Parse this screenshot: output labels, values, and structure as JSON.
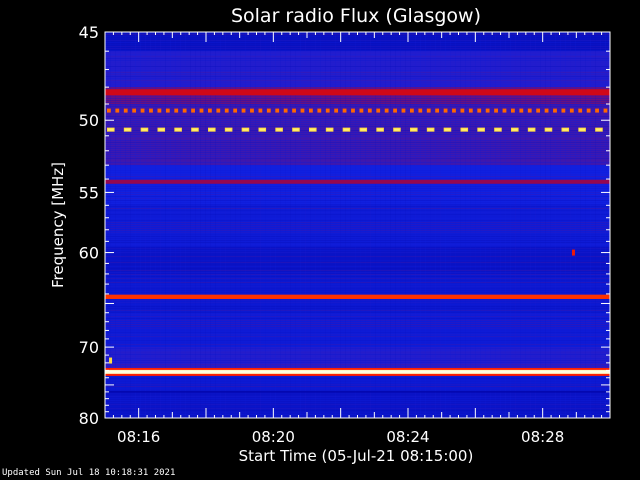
{
  "chart_data": {
    "type": "heatmap",
    "title": "Solar radio Flux (Glasgow)",
    "xlabel": "Start Time (05-Jul-21 08:15:00)",
    "ylabel": "Frequency [MHz]",
    "x_unit": "minutes after 08:15:00",
    "x_range_minutes": [
      0,
      15
    ],
    "x_ticks": [
      {
        "minute": 1,
        "label": "08:16"
      },
      {
        "minute": 5,
        "label": "08:20"
      },
      {
        "minute": 9,
        "label": "08:24"
      },
      {
        "minute": 13,
        "label": "08:28"
      }
    ],
    "y_range_mhz": [
      45,
      80
    ],
    "y_ticks": [
      45,
      50,
      55,
      60,
      70,
      80
    ],
    "y_tick_labels": [
      "45",
      "50",
      "55",
      "60",
      "70",
      "80"
    ],
    "colormap": [
      "#0000a0",
      "#1020e0",
      "#c00020",
      "#ff2000",
      "#ffd000",
      "#ffffff"
    ],
    "background_mhz": [
      {
        "from": 45.0,
        "to": 46.0,
        "level": 0.1
      },
      {
        "from": 46.0,
        "to": 48.0,
        "level": 0.22
      },
      {
        "from": 48.0,
        "to": 49.0,
        "level": 0.3
      },
      {
        "from": 49.0,
        "to": 53.0,
        "level": 0.25
      },
      {
        "from": 53.0,
        "to": 56.0,
        "level": 0.2
      },
      {
        "from": 56.0,
        "to": 59.5,
        "level": 0.17
      },
      {
        "from": 59.5,
        "to": 62.0,
        "level": 0.12
      },
      {
        "from": 62.0,
        "to": 66.0,
        "level": 0.15
      },
      {
        "from": 66.0,
        "to": 70.0,
        "level": 0.17
      },
      {
        "from": 70.0,
        "to": 73.0,
        "level": 0.22
      },
      {
        "from": 73.0,
        "to": 76.0,
        "level": 0.15
      },
      {
        "from": 76.0,
        "to": 80.0,
        "level": 0.12
      }
    ],
    "emission_lines": [
      {
        "mhz": 48.3,
        "width_mhz": 0.35,
        "level": 0.45
      },
      {
        "mhz": 54.2,
        "width_mhz": 0.3,
        "level": 0.35
      },
      {
        "mhz": 64.3,
        "width_mhz": 0.45,
        "level": 0.62
      },
      {
        "mhz": 73.2,
        "width_mhz": 0.7,
        "level": 0.95
      },
      {
        "mhz": 76.0,
        "width_mhz": 0.25,
        "level": 0.05
      }
    ],
    "pulsed_lines": [
      {
        "mhz": 49.4,
        "period_minutes": 0.25,
        "level": 0.68
      },
      {
        "mhz": 50.6,
        "period_minutes": 0.5,
        "level": 0.85
      }
    ],
    "bursts": [
      {
        "minute": 0.15,
        "mhz": 71.7,
        "level": 0.85
      },
      {
        "minute": 13.9,
        "mhz": 60.0,
        "level": 0.55
      }
    ]
  },
  "footer": {
    "updated": "Updated Sun Jul 18 10:18:31 2021"
  }
}
